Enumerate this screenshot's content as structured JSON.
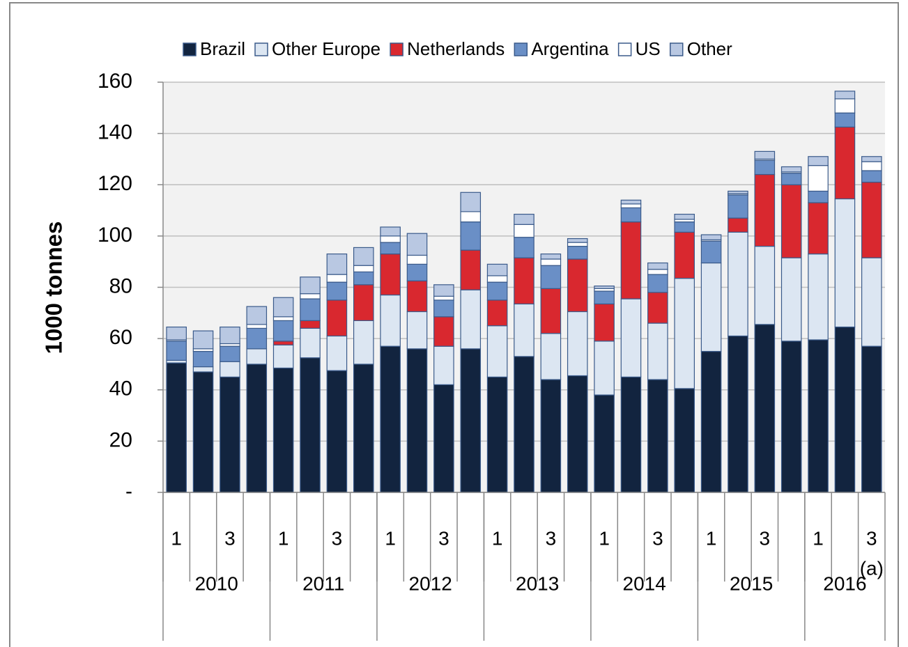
{
  "chart_data": {
    "type": "stacked_bar",
    "y_axis_label": "1000 tonnes",
    "categories": [
      "1",
      null,
      "3",
      null,
      "1",
      null,
      "3",
      null,
      "1",
      null,
      "3",
      null,
      "1",
      null,
      "3",
      null,
      "1",
      null,
      "3",
      null,
      "1",
      null,
      "3",
      null,
      "1",
      null,
      "3"
    ],
    "year_groups": [
      {
        "name": "2010",
        "count": 4
      },
      {
        "name": "2011",
        "count": 4
      },
      {
        "name": "2012",
        "count": 4
      },
      {
        "name": "2013",
        "count": 4
      },
      {
        "name": "2014",
        "count": 4
      },
      {
        "name": "2015",
        "count": 4
      },
      {
        "name": "2016",
        "count": 3
      }
    ],
    "annotation": "(a)",
    "series": [
      {
        "name": "Brazil",
        "color": "#12243f",
        "values": [
          50.5,
          47,
          45,
          50,
          48.5,
          52.5,
          47.5,
          50,
          57,
          56,
          42,
          56,
          45,
          53,
          44,
          45.5,
          38,
          45,
          44,
          40.5,
          55,
          61,
          65.5,
          59,
          59.5,
          64.5,
          57
        ]
      },
      {
        "name": "Other Europe",
        "color": "#dce6f2",
        "values": [
          1,
          2,
          6,
          6,
          9,
          11.5,
          13.5,
          17,
          20,
          14.5,
          15,
          23,
          20,
          20.5,
          18,
          25,
          21,
          30.5,
          22,
          43,
          34.5,
          40.5,
          30.5,
          32.5,
          33.5,
          50,
          34.5
        ]
      },
      {
        "name": "Netherlands",
        "color": "#d9282f",
        "values": [
          0,
          0,
          0,
          0,
          1.5,
          3,
          14,
          14,
          16,
          12,
          11.5,
          15.5,
          10,
          18,
          17.5,
          20.5,
          14.5,
          30,
          12,
          18,
          0,
          5.5,
          28,
          28.5,
          20,
          28,
          29.5
        ]
      },
      {
        "name": "Argentina",
        "color": "#6a8fc6",
        "values": [
          7.5,
          6,
          6,
          8,
          8,
          8.5,
          7,
          5,
          4.5,
          6.5,
          6.5,
          11,
          7,
          8,
          9,
          5,
          5,
          5.5,
          7,
          4,
          8.5,
          9,
          5.5,
          4.5,
          4.5,
          5.5,
          4.5
        ]
      },
      {
        "name": "US",
        "color": "#ffffff",
        "values": [
          0.5,
          1,
          1,
          1.5,
          1.5,
          2,
          3,
          2.5,
          2.5,
          3.5,
          1.5,
          4,
          2.5,
          5,
          2.5,
          1.5,
          1,
          1.5,
          2,
          1,
          0.5,
          0.5,
          0.5,
          0.5,
          10,
          5.5,
          3.5
        ]
      },
      {
        "name": "Other",
        "color": "#b9c8e2",
        "values": [
          5,
          7,
          6.5,
          7,
          7.5,
          6.5,
          8,
          7,
          3.5,
          8.5,
          4.5,
          7.5,
          4.5,
          4,
          2,
          1.5,
          1,
          1.5,
          2.5,
          2,
          2,
          1,
          3,
          2,
          3.5,
          3,
          2
        ]
      }
    ],
    "ylim": [
      0,
      160
    ],
    "yticks": [
      {
        "value": 0,
        "label": "-"
      },
      20,
      40,
      60,
      80,
      100,
      120,
      140,
      160
    ],
    "grid": true
  }
}
